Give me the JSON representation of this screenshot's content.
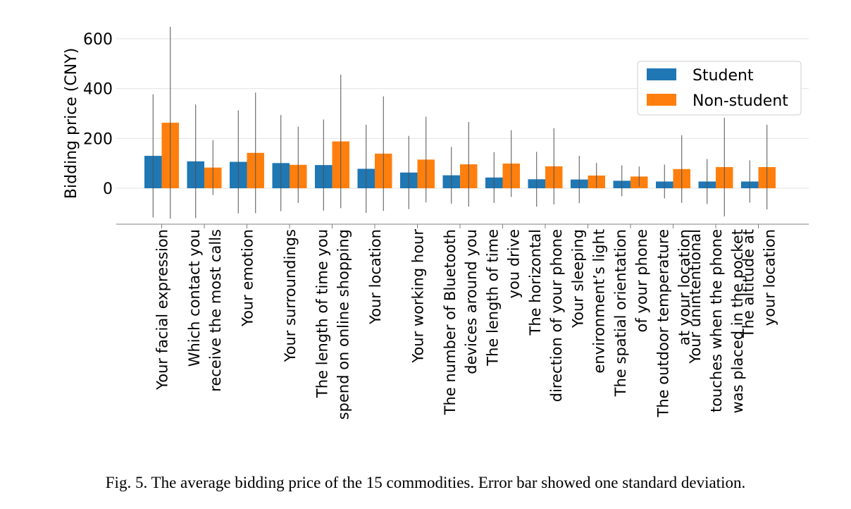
{
  "caption": "Fig. 5.  The average bidding price of the 15 commodities. Error bar showed one standard deviation.",
  "colors": {
    "student": "#1f77b4",
    "non_student": "#ff7f0e",
    "grid": "#e3e3e3",
    "axis": "#808080",
    "errorbar": "#505050"
  },
  "chart_data": {
    "type": "bar",
    "ylabel": "Bidding price (CNY)",
    "yticks": [
      0,
      200,
      400,
      600
    ],
    "ylim": [
      -145,
      650
    ],
    "grid": "horizontal",
    "legend_position": "top-right",
    "categories": [
      [
        "Your facial expression"
      ],
      [
        "Which contact you",
        "receive the most calls"
      ],
      [
        "Your emotion"
      ],
      [
        "Your surroundings"
      ],
      [
        "The length of time you",
        "spend on online shopping"
      ],
      [
        "Your location"
      ],
      [
        "Your working hour"
      ],
      [
        "The number of Bluetooth",
        "devices around you"
      ],
      [
        "The length of time",
        "you drive"
      ],
      [
        "The horizontal",
        "direction of your phone"
      ],
      [
        "Your sleeping",
        "environment’s light"
      ],
      [
        "The spatial orientation",
        "of your phone"
      ],
      [
        "The outdoor temperature",
        "at your location"
      ],
      [
        "Your unintentional",
        "touches when the phone",
        "was placed in the pocket"
      ],
      [
        "The altitude at",
        "your location"
      ]
    ],
    "series": [
      {
        "name": "Student",
        "values": [
          130,
          108,
          106,
          101,
          93,
          78,
          63,
          52,
          43,
          36,
          35,
          30,
          27,
          27,
          27
        ],
        "std": [
          247,
          228,
          207,
          193,
          183,
          177,
          147,
          114,
          102,
          110,
          95,
          62,
          68,
          90,
          85
        ]
      },
      {
        "name": "Non-student",
        "values": [
          263,
          83,
          142,
          94,
          188,
          139,
          115,
          96,
          99,
          88,
          51,
          47,
          77,
          85,
          85
        ],
        "std": [
          385,
          110,
          242,
          153,
          268,
          230,
          172,
          170,
          134,
          153,
          51,
          40,
          136,
          198,
          170
        ]
      }
    ]
  }
}
